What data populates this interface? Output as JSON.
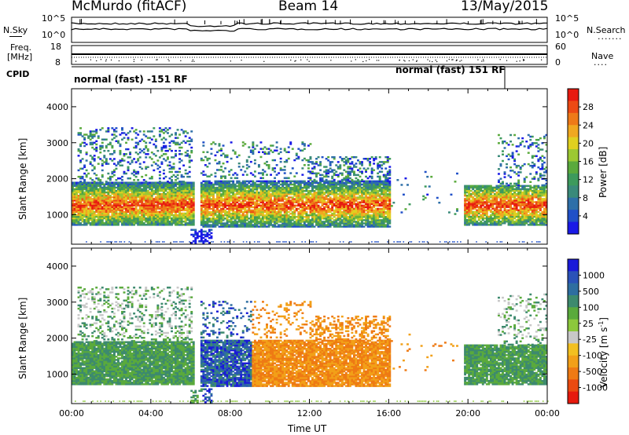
{
  "header": {
    "station": "McMurdo (fitACF)",
    "beam": "Beam 14",
    "date": "13/May/2015"
  },
  "strip_panels": {
    "noise": {
      "left_label": "N.Sky",
      "right_label": "N.Search",
      "right_dots": ".......",
      "left_ticks": [
        "10^5",
        "10^0"
      ],
      "right_ticks": [
        "10^5",
        "10^0"
      ]
    },
    "freq": {
      "left_label_line1": "Freq.",
      "left_label_line2": "[MHz]",
      "right_label": "Nave",
      "right_dots": "....",
      "left_ticks": [
        "18",
        "8"
      ],
      "right_ticks": [
        "60",
        "0"
      ]
    },
    "cpid": {
      "left_label": "CPID",
      "mode_1": "normal (fast) -151 RF",
      "mode_2": "normal (fast) 151 RF"
    }
  },
  "chart_data": [
    {
      "type": "heatmap",
      "title": "",
      "xlabel": "",
      "ylabel": "Slant Range [km]",
      "x_range_hours": [
        0,
        24
      ],
      "ylim": [
        180,
        4500
      ],
      "y_ticks": [
        "1000",
        "2000",
        "3000",
        "4000"
      ],
      "colorbar": {
        "label": "Power [dB]",
        "ticks": [
          "4",
          "8",
          "12",
          "16",
          "20",
          "24",
          "28"
        ],
        "colors": [
          "#1a1ae6",
          "#2050c8",
          "#2e6fa8",
          "#3a8a7a",
          "#3d9a5c",
          "#5aaa3c",
          "#9cc832",
          "#e0d020",
          "#f0a820",
          "#ee7a18",
          "#ec4a14",
          "#e81a10"
        ]
      }
    },
    {
      "type": "heatmap",
      "title": "",
      "xlabel": "Time UT",
      "ylabel": "Slant Range [km]",
      "x_range_hours": [
        0,
        24
      ],
      "x_ticks": [
        "00:00",
        "04:00",
        "08:00",
        "12:00",
        "16:00",
        "20:00",
        "00:00"
      ],
      "ylim": [
        180,
        4500
      ],
      "y_ticks": [
        "1000",
        "2000",
        "3000",
        "4000"
      ],
      "colorbar": {
        "label_main": "Velocity [m s",
        "label_sup": "-1",
        "label_end": "]",
        "ticks": [
          "1000",
          "500",
          "100",
          "25",
          "-25",
          "-100",
          "-500",
          "-1000"
        ],
        "colors": [
          "#1a1ad8",
          "#2a52b8",
          "#2e6ea0",
          "#3d8a6e",
          "#5aaa3c",
          "#8cc83c",
          "#c8c8c8",
          "#f2c020",
          "#f2a018",
          "#ee7a14",
          "#ea4a10",
          "#e61a0e"
        ]
      }
    }
  ]
}
